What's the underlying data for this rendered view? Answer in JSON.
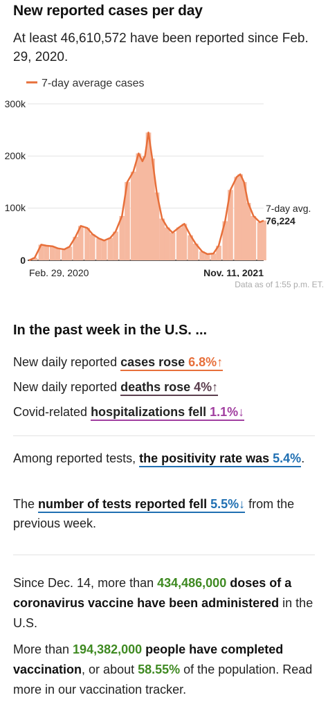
{
  "header": {
    "title": "New reported cases per day",
    "subtitle": "At least 46,610,572 have been reported since Feb. 29, 2020."
  },
  "chart_data": {
    "type": "bar",
    "legend": "7-day average cases",
    "x_start_label": "Feb. 29, 2020",
    "x_end_label": "Nov. 11, 2021",
    "y_ticks": [
      "300k",
      "200k",
      "100k",
      "0"
    ],
    "ylim": [
      0,
      300000
    ],
    "end_label_title": "7-day avg.",
    "end_label_value": "76,224",
    "grid": true,
    "colors": {
      "line": "#e76f3a",
      "bars": "#f6b9a0",
      "bars_alt": "#f3a78a"
    },
    "series": [
      {
        "name": "7-day average cases",
        "x": [
          "2020-02-29",
          "2020-03-15",
          "2020-04-01",
          "2020-04-15",
          "2020-05-01",
          "2020-05-15",
          "2020-06-01",
          "2020-06-15",
          "2020-07-01",
          "2020-07-15",
          "2020-08-01",
          "2020-08-15",
          "2020-09-01",
          "2020-09-15",
          "2020-10-01",
          "2020-10-15",
          "2020-11-01",
          "2020-11-15",
          "2020-12-01",
          "2020-12-15",
          "2020-12-25",
          "2021-01-01",
          "2021-01-10",
          "2021-01-20",
          "2021-02-01",
          "2021-02-15",
          "2021-03-01",
          "2021-03-15",
          "2021-04-01",
          "2021-04-15",
          "2021-05-01",
          "2021-05-15",
          "2021-06-01",
          "2021-06-15",
          "2021-07-01",
          "2021-07-15",
          "2021-08-01",
          "2021-08-15",
          "2021-09-01",
          "2021-09-10",
          "2021-09-20",
          "2021-10-01",
          "2021-10-15",
          "2021-11-01",
          "2021-11-11"
        ],
        "values": [
          0,
          5000,
          30000,
          28000,
          27000,
          23000,
          21000,
          26000,
          45000,
          66000,
          62000,
          50000,
          42000,
          38000,
          43000,
          55000,
          85000,
          150000,
          170000,
          205000,
          190000,
          200000,
          245000,
          195000,
          130000,
          80000,
          63000,
          53000,
          63000,
          70000,
          48000,
          32000,
          17000,
          12000,
          13000,
          28000,
          75000,
          135000,
          160000,
          165000,
          150000,
          110000,
          85000,
          73000,
          76224
        ]
      }
    ]
  },
  "data_note": "Data as of 1:55 p.m. ET.",
  "week": {
    "heading": "In the past week in the U.S. ...",
    "cases": {
      "prefix": "New daily reported ",
      "label": "cases rose ",
      "value": "6.8%",
      "arrow": "↑"
    },
    "deaths": {
      "prefix": "New daily reported ",
      "label": "deaths rose ",
      "value": "4%",
      "arrow": "↑"
    },
    "hosp": {
      "prefix": "Covid-related ",
      "label": "hospitalizations fell ",
      "value": "1.1%",
      "arrow": "↓"
    }
  },
  "tests": {
    "line1_prefix": "Among reported tests, ",
    "line1_bold": "the positivity rate was ",
    "line1_value": "5.4%",
    "line1_end": ".",
    "line2_prefix": "The ",
    "line2_bold": "number of tests reported fell ",
    "line2_value": "5.5%",
    "line2_arrow": "↓",
    "line2_end": " from the previous week."
  },
  "vaccine": {
    "p1_a": "Since Dec. 14, more than ",
    "p1_num": "434,486,000",
    "p1_b": " doses of a coronavirus vaccine have been administered",
    "p1_c": " in the U.S.",
    "p2_a": "More than ",
    "p2_num": "194,382,000",
    "p2_b": " people have completed vaccination",
    "p2_c": ", or about ",
    "p2_pct": "58.55%",
    "p2_d": " of the population. Read more in our vaccination tracker."
  }
}
